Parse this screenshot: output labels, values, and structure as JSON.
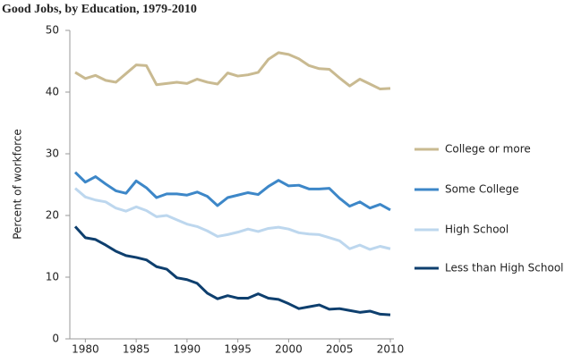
{
  "chart_data": {
    "type": "line",
    "title": "Good Jobs, by Education, 1979-2010",
    "y_label": "Percent of workforce",
    "x": [
      1979,
      1980,
      1981,
      1982,
      1983,
      1984,
      1985,
      1986,
      1987,
      1988,
      1989,
      1990,
      1991,
      1992,
      1993,
      1994,
      1995,
      1996,
      1997,
      1998,
      1999,
      2000,
      2001,
      2002,
      2003,
      2004,
      2005,
      2006,
      2007,
      2008,
      2009,
      2010
    ],
    "series": [
      {
        "name": "College or more",
        "color": "#c9ba91",
        "values": [
          43.2,
          42.2,
          42.7,
          41.9,
          41.6,
          43.0,
          44.4,
          44.3,
          41.2,
          41.4,
          41.6,
          41.4,
          42.1,
          41.6,
          41.3,
          43.1,
          42.6,
          42.8,
          43.2,
          45.3,
          46.4,
          46.1,
          45.4,
          44.3,
          43.8,
          43.7,
          42.3,
          41.0,
          42.1,
          41.3,
          40.5,
          40.6
        ]
      },
      {
        "name": "Some College",
        "color": "#3d87c8",
        "values": [
          27.0,
          25.4,
          26.3,
          25.1,
          24.0,
          23.6,
          25.6,
          24.5,
          22.9,
          23.5,
          23.5,
          23.3,
          23.8,
          23.1,
          21.6,
          22.9,
          23.3,
          23.7,
          23.4,
          24.7,
          25.7,
          24.8,
          24.9,
          24.3,
          24.3,
          24.4,
          22.8,
          21.5,
          22.2,
          21.2,
          21.8,
          20.9
        ]
      },
      {
        "name": "High School",
        "color": "#bdd7ee",
        "values": [
          24.4,
          23.0,
          22.5,
          22.2,
          21.2,
          20.7,
          21.4,
          20.8,
          19.8,
          20.0,
          19.3,
          18.6,
          18.2,
          17.5,
          16.6,
          16.9,
          17.3,
          17.8,
          17.4,
          17.9,
          18.1,
          17.8,
          17.2,
          17.0,
          16.9,
          16.4,
          15.9,
          14.6,
          15.2,
          14.5,
          15.0,
          14.6
        ]
      },
      {
        "name": "Less than High School",
        "color": "#0e3f6e",
        "values": [
          18.2,
          16.4,
          16.1,
          15.2,
          14.2,
          13.5,
          13.2,
          12.8,
          11.7,
          11.3,
          9.9,
          9.6,
          9.0,
          7.4,
          6.5,
          7.0,
          6.6,
          6.6,
          7.3,
          6.6,
          6.4,
          5.7,
          4.9,
          5.2,
          5.5,
          4.8,
          4.9,
          4.6,
          4.3,
          4.5,
          4.0,
          3.9
        ]
      }
    ],
    "xlim": [
      1979,
      2010
    ],
    "xticks": [
      1980,
      1985,
      1990,
      1995,
      2000,
      2005,
      2010
    ],
    "ylim": [
      0,
      50
    ],
    "yticks": [
      0,
      10,
      20,
      30,
      40,
      50
    ],
    "grid": false,
    "legend": "right"
  }
}
